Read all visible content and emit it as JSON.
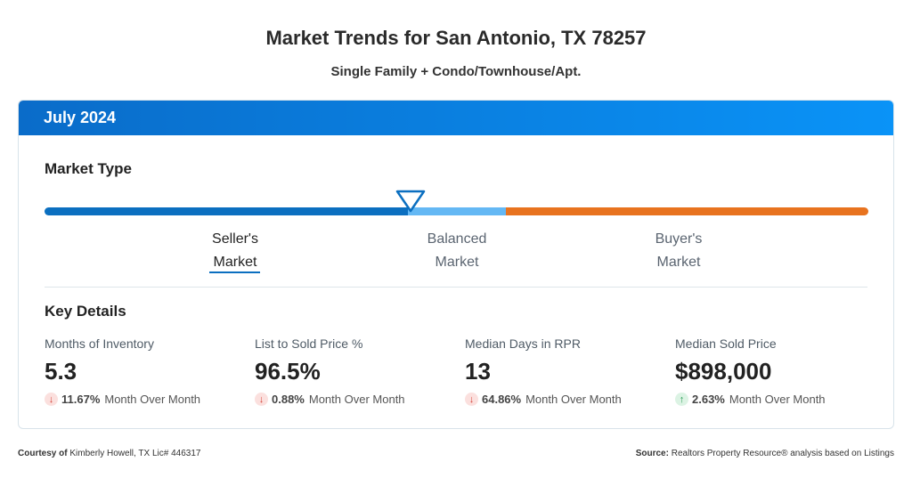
{
  "header": {
    "title": "Market Trends for San Antonio, TX 78257",
    "subtitle": "Single Family + Condo/Townhouse/Apt."
  },
  "period": "July 2024",
  "market_type": {
    "heading": "Market Type",
    "indicator_position_pct": 44,
    "selected": "Seller's Market",
    "labels": [
      {
        "line1": "Seller's",
        "line2": "Market"
      },
      {
        "line1": "Balanced",
        "line2": "Market"
      },
      {
        "line1": "Buyer's",
        "line2": "Market"
      }
    ],
    "colors": {
      "sellers": "#0b6fc0",
      "balanced": "#64b8f4",
      "buyers": "#e8731f"
    }
  },
  "key_details": {
    "heading": "Key Details",
    "metrics": [
      {
        "name": "Months of Inventory",
        "value": "5.3",
        "change": "11.67%",
        "direction": "down",
        "suffix": "Month Over Month"
      },
      {
        "name": "List to Sold Price %",
        "value": "96.5%",
        "change": "0.88%",
        "direction": "down",
        "suffix": "Month Over Month"
      },
      {
        "name": "Median Days in RPR",
        "value": "13",
        "change": "64.86%",
        "direction": "down",
        "suffix": "Month Over Month"
      },
      {
        "name": "Median Sold Price",
        "value": "$898,000",
        "change": "2.63%",
        "direction": "up",
        "suffix": "Month Over Month"
      }
    ]
  },
  "footer": {
    "courtesy_label": "Courtesy of",
    "courtesy": "Kimberly Howell, TX Lic# 446317",
    "source_label": "Source:",
    "source": "Realtors Property Resource® analysis based on Listings"
  }
}
